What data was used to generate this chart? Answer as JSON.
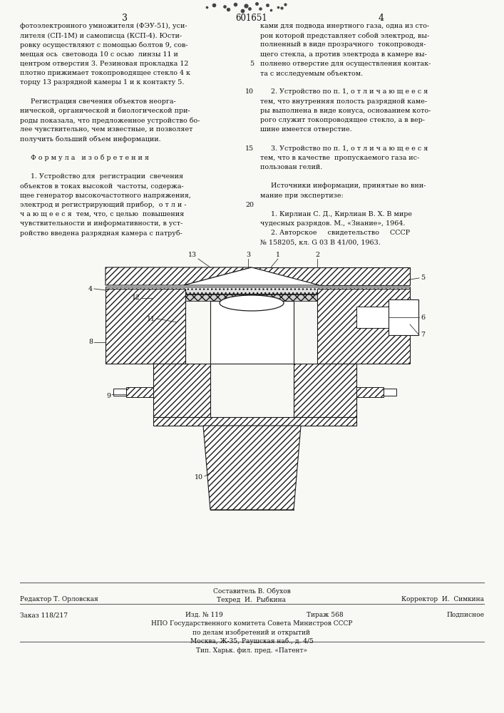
{
  "page_width": 7.07,
  "page_height": 10.0,
  "bg_color": "#f8f8f4",
  "patent_number": "601651",
  "page_numbers": [
    "3",
    "4"
  ],
  "col1_text": [
    "фотоэлектронного умножителя (ФЭУ-51), уси-",
    "лителя (СП-1М) и самописца (КСП-4). Юсти-",
    "ровку осуществляют с помощью болтов 9, сов-",
    "мещая ось  световода 10 с осью  линзы 11 и",
    "центром отверстия 3. Резиновая прокладка 12",
    "плотно прижимает токопроводящее стекло 4 к",
    "торцу 13 разрядной камеры 1 и к контакту 5.",
    "",
    "     Регистрация свечения объектов неорга-",
    "нической, органической и биологической при-",
    "роды показала, что предложенное устройство бо-",
    "лее чувствительно, чем известные, и позволяет",
    "получить больший объем информации.",
    "",
    "     Ф о р м у л а   и з о б р е т е н и я",
    "",
    "     1. Устройство для  регистрации  свечения",
    "объектов в токах высокой  частоты, содержа-",
    "щее генератор высокочастотного напряжения,",
    "электрод и регистрирующий прибор,  о т л и -",
    "ч а ю щ е е с я  тем, что, с целью  повышения",
    "чувствительности и информативности, в уст-",
    "ройство введена разрядная камера с патруб-"
  ],
  "col2_text": [
    "ками для подвода инертного газа, одна из сто-",
    "рон которой представляет собой электрод, вы-",
    "полненный в виде прозрачного  токопроводя-",
    "щего стекла, а против электрода в камере вы-",
    "полнено отверстие для осуществления контак-",
    "та с исследуемым объектом.",
    "",
    "     2. Устройство по п. 1, о т л и ч а ю щ е е с я",
    "тем, что внутренняя полость разрядной каме-",
    "ры выполнена в виде конуса, основанием кото-",
    "рого служит токопроводящее стекло, а в вер-",
    "шине имеется отверстие.",
    "",
    "     3. Устройство по п. 1, о т л и ч а ю щ е е с я",
    "тем, что в качестве  пропускаемого газа ис-",
    "пользован гелий.",
    "",
    "     Источники информации, принятые во вни-",
    "мание при экспертизе:",
    "",
    "     1. Кирлиан С. Д., Кирлиан В. Х. В мире",
    "чудесных разрядов. М., «Знание», 1964.",
    "     2. Авторское     свидетельство     СССР",
    "№ 158205, кл. G 03 B 41/00, 1963."
  ],
  "footer_sestavitel": "Составитель В. Обухов",
  "footer_editor": "Редактор Т. Орловская",
  "footer_techred": "Техред  И.  Рыбкина",
  "footer_korrektor": "Корректор  И.  Симкина",
  "footer_zakaz": "Заказ 118/217",
  "footer_izd": "Изд. № 119",
  "footer_tirazh": "Тираж 568",
  "footer_podpisnoe": "Подписное",
  "footer_npo": "НПО Государственного комитета Совета Министров СССР",
  "footer_npo2": "по делам изобретений и открытий",
  "footer_moscow": "Москва, Ж-35, Раушская наб., д. 4/5",
  "footer_tip": "Тип. Харьк. фил. пред. «Патент»",
  "text_color": "#111111",
  "line_color": "#333333"
}
